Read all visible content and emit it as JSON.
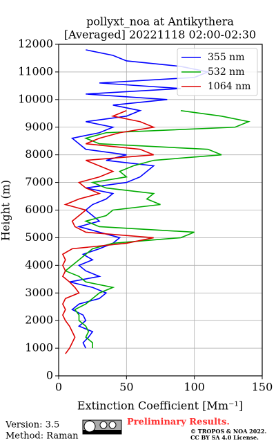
{
  "chart_data": {
    "type": "line",
    "title": "pollyxt_noa at Antikythera",
    "subtitle": "[Averaged] 20221118 02:00-02:30",
    "x_label": "Extinction Coefficient [Mm⁻¹]",
    "y_label": "Height (m)",
    "height": [
      800,
      1000,
      1200,
      1400,
      1600,
      1800,
      2000,
      2200,
      2400,
      2600,
      2800,
      3000,
      3200,
      3400,
      3600,
      3800,
      4000,
      4200,
      4400,
      4600,
      4800,
      5000,
      5200,
      5400,
      5600,
      5800,
      6000,
      6200,
      6400,
      6600,
      6800,
      7000,
      7200,
      7400,
      7600,
      7800,
      8000,
      8200,
      8400,
      8600,
      8800,
      9000,
      9200,
      9400,
      9600,
      9800,
      10000,
      10200,
      10400,
      10600,
      10800,
      11000,
      11200,
      11400,
      11600,
      11800,
      12000
    ],
    "series": [
      {
        "name": "355 nm",
        "color": "#0000ff",
        "values": [
          null,
          20,
          18,
          22,
          25,
          15,
          20,
          18,
          10,
          15,
          30,
          35,
          25,
          8,
          30,
          20,
          15,
          25,
          18,
          30,
          40,
          45,
          30,
          15,
          30,
          25,
          20,
          25,
          35,
          40,
          20,
          50,
          60,
          65,
          70,
          35,
          50,
          20,
          15,
          10,
          30,
          40,
          20,
          50,
          60,
          40,
          80,
          20,
          90,
          30,
          100,
          110,
          90,
          50,
          40,
          20,
          null
        ]
      },
      {
        "name": "532 nm",
        "color": "#00aa00",
        "values": [
          null,
          25,
          25,
          20,
          22,
          20,
          15,
          15,
          12,
          20,
          25,
          30,
          40,
          20,
          15,
          5,
          10,
          15,
          20,
          25,
          40,
          90,
          100,
          30,
          20,
          35,
          40,
          75,
          65,
          70,
          35,
          25,
          50,
          45,
          55,
          70,
          120,
          110,
          30,
          20,
          35,
          130,
          140,
          120,
          90,
          null,
          null,
          null,
          null,
          null,
          null,
          null,
          null,
          null,
          null,
          null,
          null
        ]
      },
      {
        "name": "1064 nm",
        "color": "#dd0000",
        "values": [
          5,
          8,
          10,
          12,
          10,
          8,
          5,
          3,
          5,
          3,
          5,
          15,
          12,
          8,
          3,
          5,
          3,
          5,
          3,
          10,
          50,
          70,
          20,
          12,
          10,
          15,
          20,
          5,
          15,
          30,
          20,
          15,
          30,
          40,
          30,
          20,
          70,
          60,
          20,
          30,
          45,
          70,
          60,
          40,
          50,
          null,
          null,
          null,
          null,
          null,
          null,
          null,
          null,
          null,
          null,
          null,
          null
        ]
      }
    ],
    "xlim": [
      0,
      150
    ],
    "xticks": [
      0,
      50,
      100,
      150
    ],
    "ylim": [
      0,
      12000
    ],
    "yticks": [
      0,
      1000,
      2000,
      3000,
      4000,
      5000,
      6000,
      7000,
      8000,
      9000,
      10000,
      11000,
      12000
    ],
    "grid": true,
    "legend": "upper right",
    "footer": {
      "version": "Version: 3.5",
      "method": "Method: Raman",
      "preliminary": "Preliminary Results.",
      "copyright": "© TROPOS & NOA 2022.",
      "license": "CC BY SA 4.0 License."
    }
  }
}
